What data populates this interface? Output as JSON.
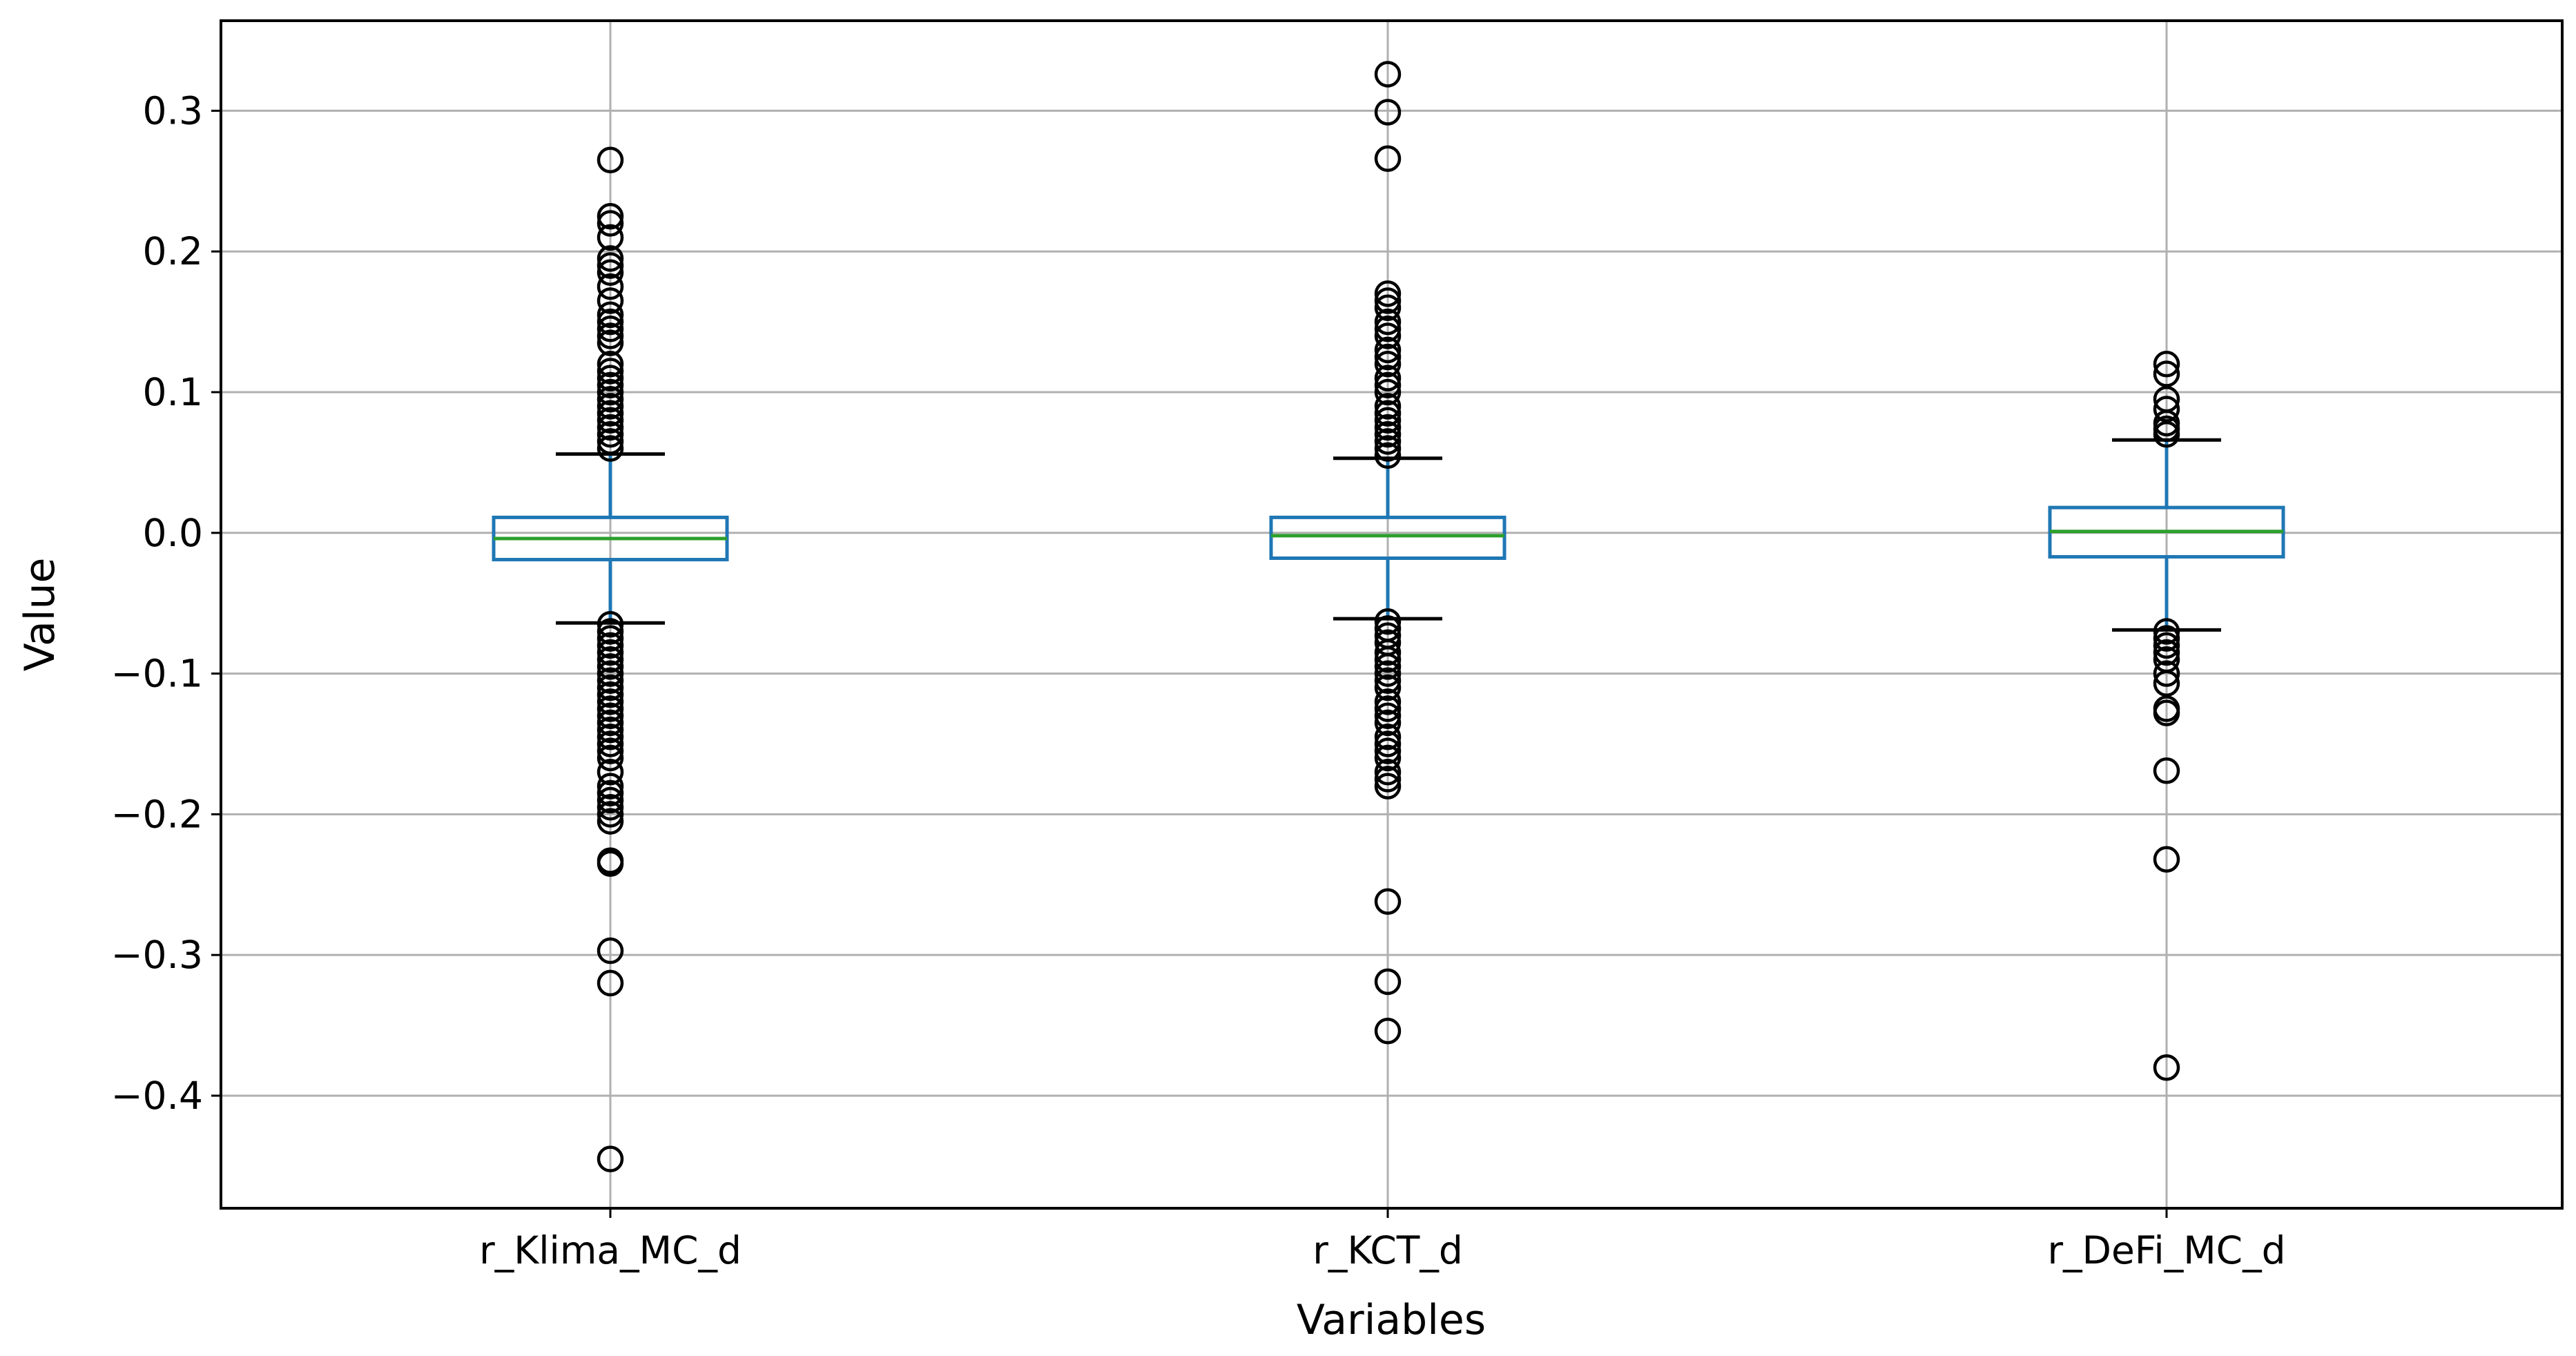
{
  "chart_data": {
    "type": "box",
    "xlabel": "Variables",
    "ylabel": "Value",
    "ylim": [
      -0.48,
      0.364
    ],
    "yticks": [
      -0.4,
      -0.3,
      -0.2,
      -0.1,
      0.0,
      0.1,
      0.2,
      0.3
    ],
    "ytick_labels": [
      "−0.4",
      "−0.3",
      "−0.2",
      "−0.1",
      "0.0",
      "0.1",
      "0.2",
      "0.3"
    ],
    "grid": true,
    "legend": "none",
    "colors": {
      "box": "#1f77b4",
      "median": "#2ca02c",
      "whisker": "#1f77b4",
      "cap": "#000000",
      "flier": "#000000",
      "grid": "#b0b0b0"
    },
    "series": [
      {
        "category": "r_Klima_MC_d",
        "q1": -0.019,
        "median": -0.004,
        "q3": 0.011,
        "whisker_low": -0.064,
        "whisker_high": 0.056,
        "fliers": [
          0.265,
          0.225,
          0.22,
          0.21,
          0.195,
          0.19,
          0.185,
          0.175,
          0.165,
          0.155,
          0.15,
          0.145,
          0.14,
          0.135,
          0.12,
          0.115,
          0.11,
          0.105,
          0.1,
          0.095,
          0.09,
          0.085,
          0.08,
          0.075,
          0.07,
          0.065,
          0.06,
          -0.065,
          -0.07,
          -0.075,
          -0.08,
          -0.085,
          -0.09,
          -0.095,
          -0.1,
          -0.105,
          -0.11,
          -0.115,
          -0.12,
          -0.125,
          -0.13,
          -0.135,
          -0.14,
          -0.145,
          -0.15,
          -0.155,
          -0.16,
          -0.17,
          -0.18,
          -0.185,
          -0.19,
          -0.195,
          -0.2,
          -0.205,
          -0.233,
          -0.235,
          -0.297,
          -0.32,
          -0.445
        ]
      },
      {
        "category": "r_KCT_d",
        "q1": -0.018,
        "median": -0.002,
        "q3": 0.011,
        "whisker_low": -0.061,
        "whisker_high": 0.053,
        "fliers": [
          0.326,
          0.299,
          0.266,
          0.17,
          0.165,
          0.16,
          0.15,
          0.145,
          0.14,
          0.13,
          0.125,
          0.12,
          0.11,
          0.105,
          0.1,
          0.09,
          0.085,
          0.08,
          0.075,
          0.07,
          0.065,
          0.06,
          0.055,
          -0.063,
          -0.068,
          -0.073,
          -0.078,
          -0.085,
          -0.09,
          -0.095,
          -0.1,
          -0.105,
          -0.11,
          -0.12,
          -0.125,
          -0.13,
          -0.135,
          -0.145,
          -0.15,
          -0.155,
          -0.16,
          -0.17,
          -0.175,
          -0.18,
          -0.262,
          -0.319,
          -0.354
        ]
      },
      {
        "category": "r_DeFi_MC_d",
        "q1": -0.017,
        "median": 0.001,
        "q3": 0.018,
        "whisker_low": -0.069,
        "whisker_high": 0.066,
        "fliers": [
          0.12,
          0.113,
          0.095,
          0.088,
          0.078,
          0.074,
          0.07,
          -0.07,
          -0.075,
          -0.08,
          -0.085,
          -0.09,
          -0.1,
          -0.107,
          -0.125,
          -0.128,
          -0.169,
          -0.232,
          -0.38
        ]
      }
    ]
  }
}
